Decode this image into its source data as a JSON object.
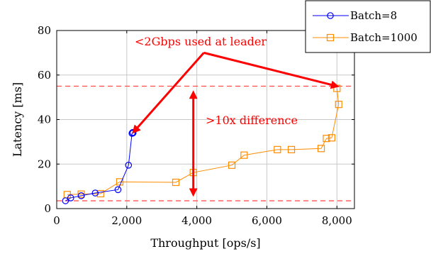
{
  "chart_data": {
    "type": "line",
    "xlabel": "Throughput [ops/s]",
    "ylabel": "Latency [ms]",
    "xlim": [
      0,
      8500
    ],
    "ylim": [
      0,
      80
    ],
    "x_ticks": [
      0,
      2000,
      4000,
      6000,
      8000
    ],
    "x_tick_labels": [
      "0",
      "2,000",
      "4,000",
      "6,000",
      "8,000"
    ],
    "y_ticks": [
      0,
      20,
      40,
      60,
      80
    ],
    "y_tick_labels": [
      "0",
      "20",
      "40",
      "60",
      "80"
    ],
    "grid": true,
    "legend_position": "top-right",
    "series": [
      {
        "name": "Batch=8",
        "color": "#0000ff",
        "marker": "circle",
        "points": [
          [
            250,
            3.5
          ],
          [
            400,
            4.8
          ],
          [
            700,
            5.8
          ],
          [
            1100,
            7.0
          ],
          [
            1750,
            8.5
          ],
          [
            2050,
            19.5
          ],
          [
            2150,
            33.8
          ],
          [
            2170,
            34.2
          ],
          [
            2180,
            34.0
          ]
        ]
      },
      {
        "name": "Batch=1000",
        "color": "#ff8c00",
        "marker": "square",
        "points": [
          [
            300,
            6.3
          ],
          [
            700,
            6.5
          ],
          [
            1250,
            6.7
          ],
          [
            1800,
            12.0
          ],
          [
            3400,
            11.8
          ],
          [
            3900,
            16.2
          ],
          [
            5000,
            19.5
          ],
          [
            5350,
            24.0
          ],
          [
            6300,
            26.5
          ],
          [
            6700,
            26.5
          ],
          [
            7550,
            27.0
          ],
          [
            7700,
            31.5
          ],
          [
            7850,
            31.8
          ],
          [
            8050,
            46.8
          ],
          [
            8000,
            54.0
          ]
        ]
      }
    ],
    "reference_lines": [
      {
        "y": 55,
        "color": "#ff4444",
        "style": "dashed"
      },
      {
        "y": 3.5,
        "color": "#ff4444",
        "style": "dashed"
      }
    ],
    "annotations": [
      {
        "text": "<2Gbps used at leader",
        "color": "#ff0000"
      },
      {
        "text": ">10x difference",
        "color": "#ff0000"
      }
    ],
    "annotation_arrows": [
      {
        "from": [
          4200,
          70
        ],
        "to": [
          2200,
          34.5
        ]
      },
      {
        "from": [
          4200,
          70
        ],
        "to": [
          8000,
          55
        ]
      },
      {
        "from": [
          3900,
          8
        ],
        "to": [
          3900,
          52
        ],
        "double_headed": true
      }
    ]
  }
}
